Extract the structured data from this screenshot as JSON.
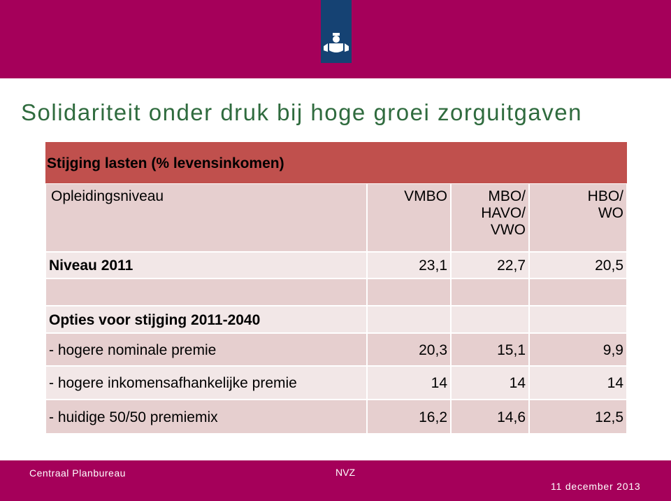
{
  "header": {
    "title": "Solidariteit onder druk bij hoge groei zorguitgaven"
  },
  "table": {
    "title": "Stijging lasten (% levensinkomen)",
    "columns": [
      [
        "Opleidingsniveau"
      ],
      [
        "VMBO"
      ],
      [
        "MBO/",
        "HAVO/",
        "VWO"
      ],
      [
        "HBO/",
        "WO"
      ]
    ],
    "rows": [
      [
        "Niveau 2011",
        "23,1",
        "22,7",
        "20,5"
      ],
      [
        "Opties voor stijging 2011-2040"
      ],
      [
        "- hogere nominale premie",
        "20,3",
        "15,1",
        "9,9"
      ],
      [
        "- hogere inkomensafhankelijke premie",
        "14",
        "14",
        "14"
      ],
      [
        "- huidige 50/50 premiemix",
        "16,2",
        "14,6",
        "12,5"
      ]
    ]
  },
  "footer": {
    "left": "Centraal Planbureau",
    "center": "NVZ",
    "right": "11 december 2013"
  }
}
